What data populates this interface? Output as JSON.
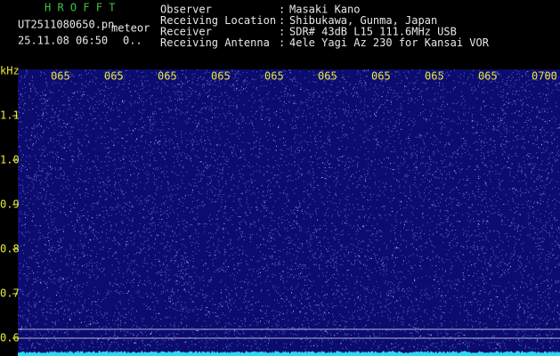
{
  "header": {
    "program": "H R O F F T",
    "file": "UT2511080650.pn",
    "tag": "meteor",
    "datetime": "25.11.08 06:50",
    "extra": "0..",
    "info": [
      {
        "label": "Observer",
        "value": "Masaki Kano"
      },
      {
        "label": "Receiving Location",
        "value": "Shibukawa, Gunma, Japan"
      },
      {
        "label": "Receiver",
        "value": "SDR# 43dB L15 111.6MHz USB"
      },
      {
        "label": "Receiving Antenna",
        "value": "4ele Yagi Az 230 for Kansai VOR"
      }
    ],
    "separator": ":"
  },
  "spectrogram": {
    "yunit": "kHz",
    "ylim": [
      0.56,
      1.204
    ],
    "yticks": [
      1.1,
      {
        "value": 1,
        "label": "1.0"
      },
      0.9,
      0.8,
      0.7,
      0.6
    ],
    "time_labels": [
      "065",
      "065",
      "065",
      "065",
      "065",
      "065",
      "065",
      "065",
      "065",
      "0700"
    ]
  }
}
